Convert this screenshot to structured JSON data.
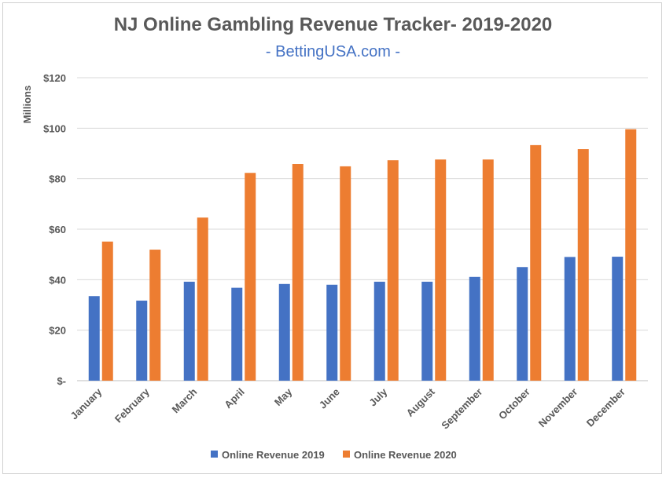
{
  "chart_data": {
    "type": "bar",
    "title": "NJ Online Gambling Revenue Tracker- 2019-2020",
    "subtitle": "- BettingUSA.com -",
    "ylabel": "Millions",
    "xlabel": "",
    "ylim": [
      0,
      120
    ],
    "y_ticks": [
      {
        "value": 0,
        "label": "$-"
      },
      {
        "value": 20,
        "label": "$20"
      },
      {
        "value": 40,
        "label": "$40"
      },
      {
        "value": 60,
        "label": "$60"
      },
      {
        "value": 80,
        "label": "$80"
      },
      {
        "value": 100,
        "label": "$100"
      },
      {
        "value": 120,
        "label": "$120"
      }
    ],
    "categories": [
      "January",
      "February",
      "March",
      "April",
      "May",
      "June",
      "July",
      "August",
      "September",
      "October",
      "November",
      "December"
    ],
    "series": [
      {
        "name": "Online Revenue 2019",
        "color": "#4472c4",
        "values": [
          33.5,
          31.7,
          39.2,
          36.8,
          38.3,
          38.0,
          39.2,
          39.2,
          41.1,
          45.0,
          49.0,
          49.1
        ]
      },
      {
        "name": "Online Revenue 2020",
        "color": "#ed7d31",
        "values": [
          55.1,
          51.9,
          64.6,
          82.3,
          85.8,
          84.9,
          87.3,
          87.6,
          87.6,
          93.3,
          91.7,
          99.6
        ]
      }
    ],
    "grid": true,
    "legend_position": "bottom"
  }
}
